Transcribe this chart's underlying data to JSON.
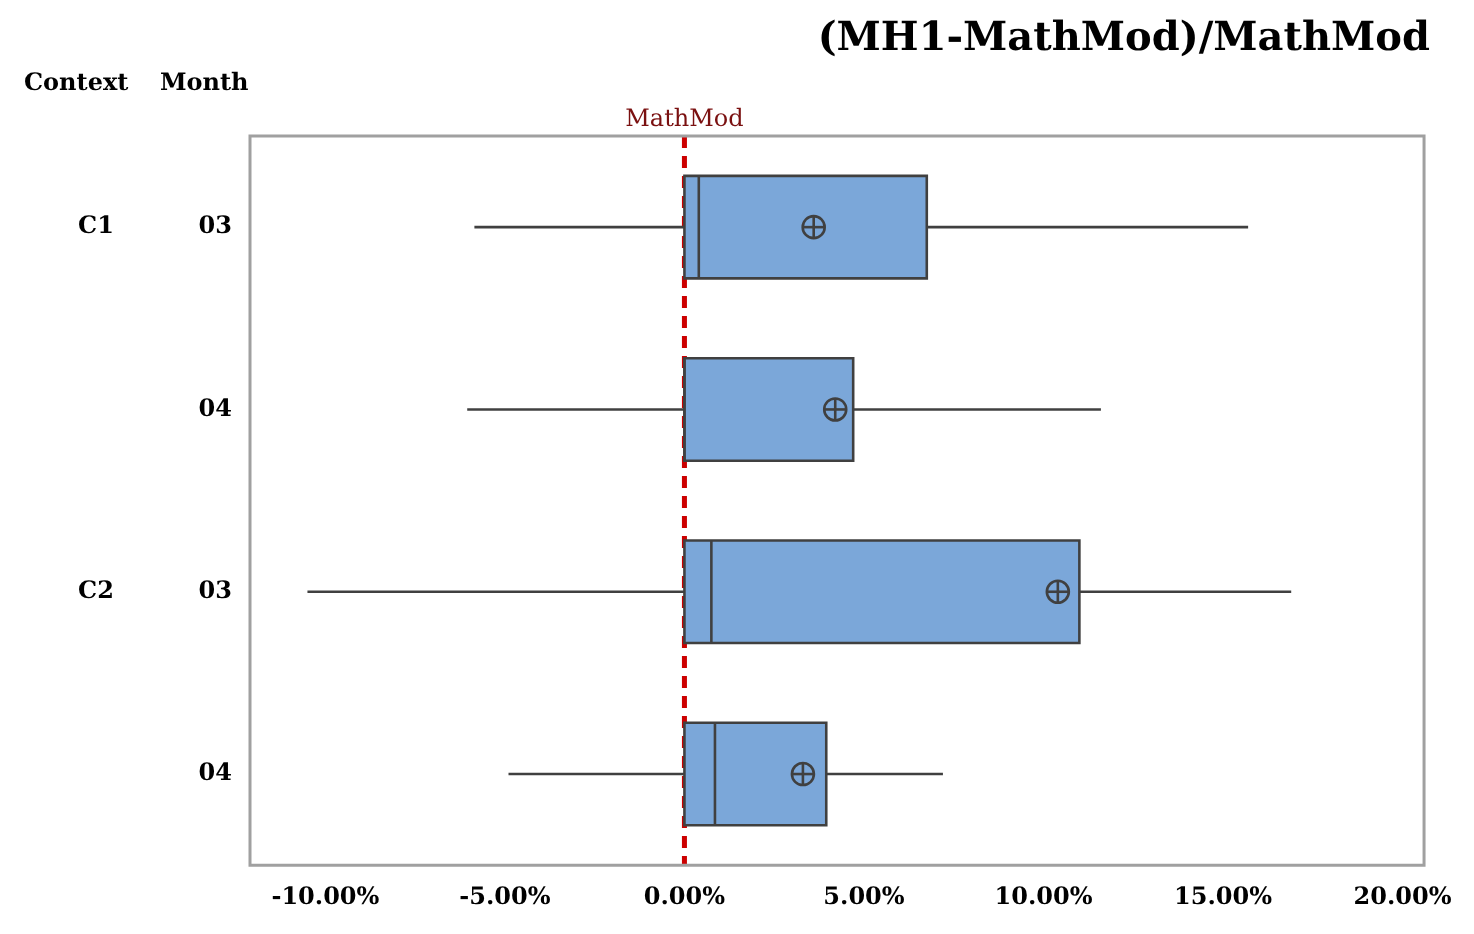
{
  "chart_data": {
    "type": "box",
    "orientation": "horizontal",
    "title": "(MH1-MathMod)/MathMod",
    "categories": [
      "03",
      "04",
      "03",
      "04"
    ],
    "color": "#7ba7d9",
    "boxes": [
      {
        "low": -5.85,
        "q1": 0,
        "median": 0.4,
        "q3": 6.75,
        "high": 15.7,
        "mean": 3.6
      },
      {
        "low": -6.05,
        "q1": 0,
        "median": 0,
        "q3": 4.7,
        "high": 11.6,
        "mean": 4.2
      },
      {
        "low": -10.5,
        "q1": 0,
        "median": 0.75,
        "q3": 11.0,
        "high": 16.9,
        "mean": 10.4
      },
      {
        "low": -4.9,
        "q1": 0,
        "median": 0.85,
        "q3": 3.95,
        "high": 7.2,
        "mean": 3.3
      }
    ],
    "xlim": [
      -12.1,
      20.6
    ],
    "xticks": [
      {
        "value": -10,
        "label": "-10.00%"
      },
      {
        "value": -5,
        "label": "-5.00%"
      },
      {
        "value": 0,
        "label": "0.00%"
      },
      {
        "value": 5,
        "label": "5.00%"
      },
      {
        "value": 10,
        "label": "10.00%"
      },
      {
        "value": 15,
        "label": "15.00%"
      },
      {
        "value": 20,
        "label": "20.00%"
      }
    ],
    "ref_lines": [
      {
        "axis": "x",
        "value": 0,
        "label": "MathMod",
        "color": "#cc0000",
        "line_style": "dashed"
      }
    ],
    "annotations": [
      "Context",
      "Month",
      "C1",
      "C2"
    ]
  }
}
